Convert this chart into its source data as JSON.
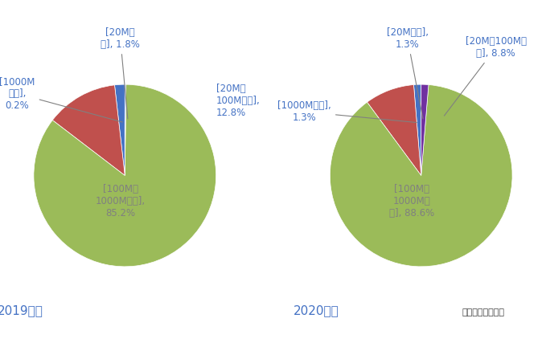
{
  "chart1": {
    "title": "2019年末",
    "values": [
      1.8,
      12.8,
      85.2,
      0.2
    ],
    "colors": [
      "#4472c4",
      "#c0504d",
      "#9bbb59",
      "#4472c4"
    ],
    "startangle": 90,
    "label_colors": [
      "#4472c4",
      "#4472c4",
      "#808080",
      "#4472c4"
    ]
  },
  "chart2": {
    "title": "2020年末",
    "note": "注：分组下限在内",
    "values": [
      1.3,
      8.8,
      88.6,
      1.3
    ],
    "colors": [
      "#4472c4",
      "#c0504d",
      "#9bbb59",
      "#7030a0"
    ],
    "startangle": 90,
    "label_colors": [
      "#4472c4",
      "#4472c4",
      "#808080",
      "#4472c4"
    ]
  },
  "bg_color": "#ffffff",
  "title_color": "#4472c4",
  "title_fontsize": 11,
  "label_fontsize": 8.5
}
